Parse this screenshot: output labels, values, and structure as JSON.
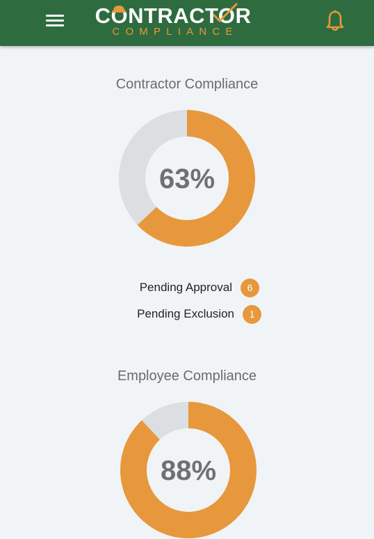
{
  "header": {
    "logo_top": "CONTRACTOR",
    "logo_bottom": "COMPLIANCE",
    "menu_icon": "hamburger-menu-icon",
    "bell_icon": "bell-icon",
    "bar_color": "#2e6b3e",
    "accent_color": "#e8983c"
  },
  "contractor": {
    "title": "Contractor Compliance",
    "percent": 63,
    "percent_label": "63%",
    "pending": [
      {
        "label": "Pending Approval",
        "count": "6"
      },
      {
        "label": "Pending Exclusion",
        "count": "1"
      }
    ]
  },
  "employee": {
    "title": "Employee Compliance",
    "percent": 88,
    "percent_label": "88%"
  },
  "colors": {
    "filled": "#e8983c",
    "remaining": "#dcdfe2",
    "percent_text": "#707070"
  }
}
